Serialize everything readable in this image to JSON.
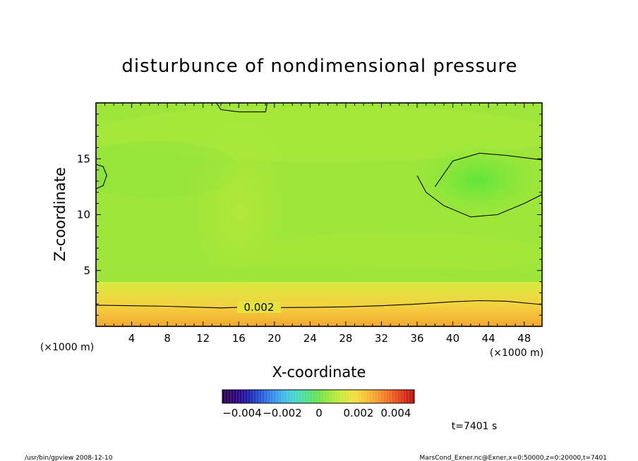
{
  "chart_data": {
    "type": "heatmap",
    "title": "disturbunce of nondimensional pressure",
    "xlabel": "X-coordinate",
    "ylabel": "Z-coordinate",
    "x_unit_left": "(×1000 m)",
    "x_unit_right": "(×1000 m)",
    "xlim": [
      0,
      50
    ],
    "ylim": [
      0,
      20
    ],
    "x_ticks": [
      4,
      8,
      12,
      16,
      20,
      24,
      28,
      32,
      36,
      40,
      44,
      48
    ],
    "y_ticks": [
      5,
      10,
      15
    ],
    "contours": [
      {
        "level_label": "0.002",
        "points": [
          [
            0,
            1.9
          ],
          [
            4,
            1.85
          ],
          [
            8,
            1.8
          ],
          [
            12,
            1.7
          ],
          [
            14,
            1.65
          ],
          [
            16,
            1.7
          ],
          [
            20,
            1.68
          ],
          [
            24,
            1.7
          ],
          [
            28,
            1.75
          ],
          [
            32,
            1.85
          ],
          [
            36,
            2.0
          ],
          [
            40,
            2.2
          ],
          [
            43,
            2.3
          ],
          [
            46,
            2.25
          ],
          [
            50,
            1.95
          ]
        ]
      },
      {
        "level_label": "",
        "points": [
          [
            38,
            12.5
          ],
          [
            40,
            14.8
          ],
          [
            43,
            15.5
          ],
          [
            46,
            15.3
          ],
          [
            50,
            14.9
          ]
        ]
      },
      {
        "level_label": "",
        "points": [
          [
            36,
            13.5
          ],
          [
            37,
            12.0
          ],
          [
            39,
            10.8
          ],
          [
            42,
            9.8
          ],
          [
            45,
            10.0
          ],
          [
            48,
            11.0
          ],
          [
            50,
            11.8
          ]
        ]
      },
      {
        "level_label": "",
        "points": [
          [
            13.5,
            20
          ],
          [
            14,
            19.4
          ],
          [
            16,
            19.2
          ],
          [
            19,
            19.2
          ],
          [
            19.2,
            20
          ]
        ]
      },
      {
        "level_label": "",
        "points": [
          [
            0,
            14.5
          ],
          [
            0.8,
            14.3
          ],
          [
            1.2,
            13.5
          ],
          [
            0.8,
            12.6
          ],
          [
            0,
            12.3
          ]
        ]
      }
    ],
    "colorbar": {
      "tick_labels": [
        "−0.004",
        "−0.002",
        "0",
        "0.002",
        "0.004"
      ],
      "range": [
        -0.005,
        0.005
      ],
      "colors": [
        "#2b004f",
        "#2c007a",
        "#1a1aa8",
        "#1f4fd0",
        "#2f86e8",
        "#3fb7e8",
        "#45d6c8",
        "#4fe08a",
        "#6ee04a",
        "#a0e63a",
        "#cfe83a",
        "#f0e040",
        "#f8c030",
        "#f59a2a",
        "#f06a20",
        "#e03a18",
        "#c01010"
      ]
    },
    "time_label": "t=7401 s",
    "grid": false
  },
  "footer": {
    "left": "/usr/bin/gpview   2008-12-10",
    "right": "MarsCond_Exner.nc@Exner,x=0:50000,z=0:20000,t=7401"
  }
}
